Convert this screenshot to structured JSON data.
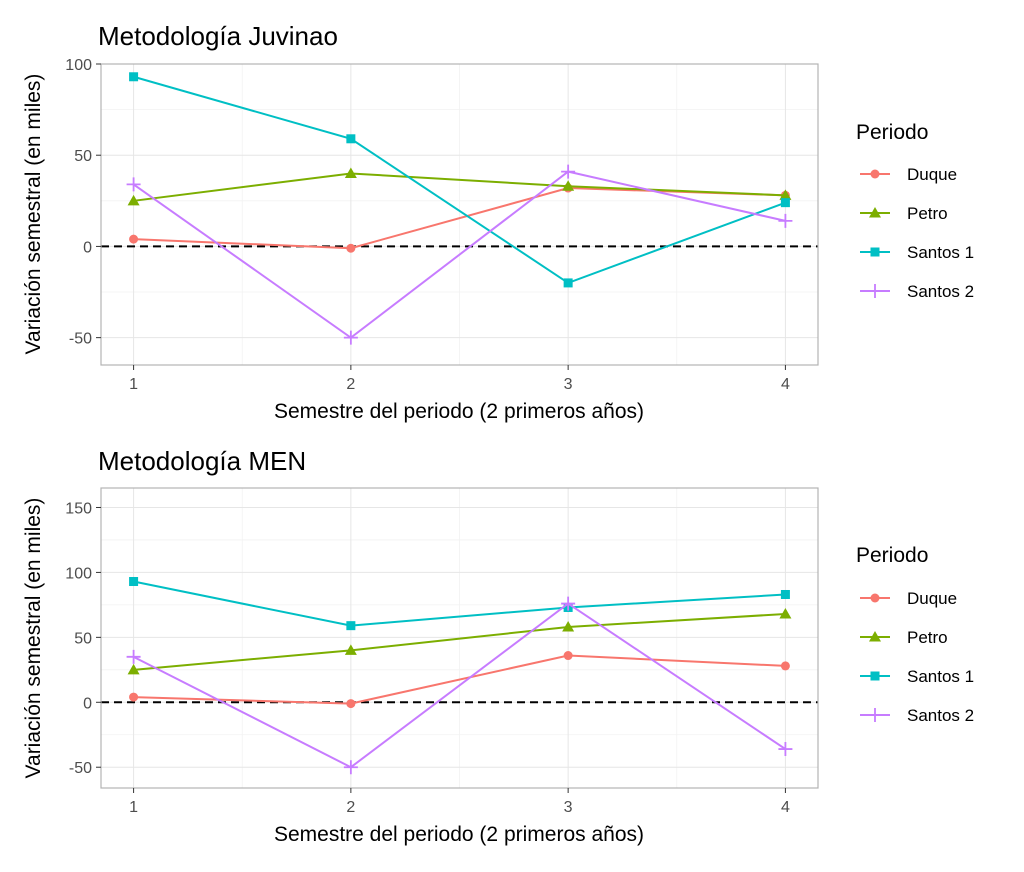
{
  "chart_data": [
    {
      "type": "line",
      "title": "Metodología Juvinao",
      "xlabel": "Semestre del periodo (2 primeros años)",
      "ylabel": "Variación semestral (en miles)",
      "x": [
        1,
        2,
        3,
        4
      ],
      "x_ticks": [
        "1",
        "2",
        "3",
        "4"
      ],
      "y_ticks": [
        "-50",
        "0",
        "50",
        "100"
      ],
      "ylim": [
        -65,
        100
      ],
      "reference_line": 0,
      "legend_title": "Periodo",
      "series": [
        {
          "name": "Duque",
          "values": [
            4,
            -1,
            32,
            28
          ],
          "color": "#F8766D",
          "marker": "circle"
        },
        {
          "name": "Petro",
          "values": [
            25,
            40,
            33,
            28
          ],
          "color": "#7CAE00",
          "marker": "triangle"
        },
        {
          "name": "Santos 1",
          "values": [
            93,
            59,
            -20,
            24
          ],
          "color": "#00BFC4",
          "marker": "square"
        },
        {
          "name": "Santos 2",
          "values": [
            34,
            -50,
            41,
            14
          ],
          "color": "#C77CFF",
          "marker": "plus"
        }
      ]
    },
    {
      "type": "line",
      "title": "Metodología MEN",
      "xlabel": "Semestre del periodo (2 primeros años)",
      "ylabel": "Variación semestral (en miles)",
      "x": [
        1,
        2,
        3,
        4
      ],
      "x_ticks": [
        "1",
        "2",
        "3",
        "4"
      ],
      "y_ticks": [
        "-50",
        "0",
        "50",
        "100",
        "150"
      ],
      "ylim": [
        -66,
        165
      ],
      "reference_line": 0,
      "legend_title": "Periodo",
      "series": [
        {
          "name": "Duque",
          "values": [
            4,
            -1,
            36,
            28
          ],
          "color": "#F8766D",
          "marker": "circle"
        },
        {
          "name": "Petro",
          "values": [
            25,
            40,
            58,
            68
          ],
          "color": "#7CAE00",
          "marker": "triangle"
        },
        {
          "name": "Santos 1",
          "values": [
            93,
            59,
            73,
            83
          ],
          "color": "#00BFC4",
          "marker": "square"
        },
        {
          "name": "Santos 2",
          "values": [
            35,
            -50,
            76,
            -36
          ],
          "color": "#C77CFF",
          "marker": "plus"
        }
      ]
    }
  ]
}
